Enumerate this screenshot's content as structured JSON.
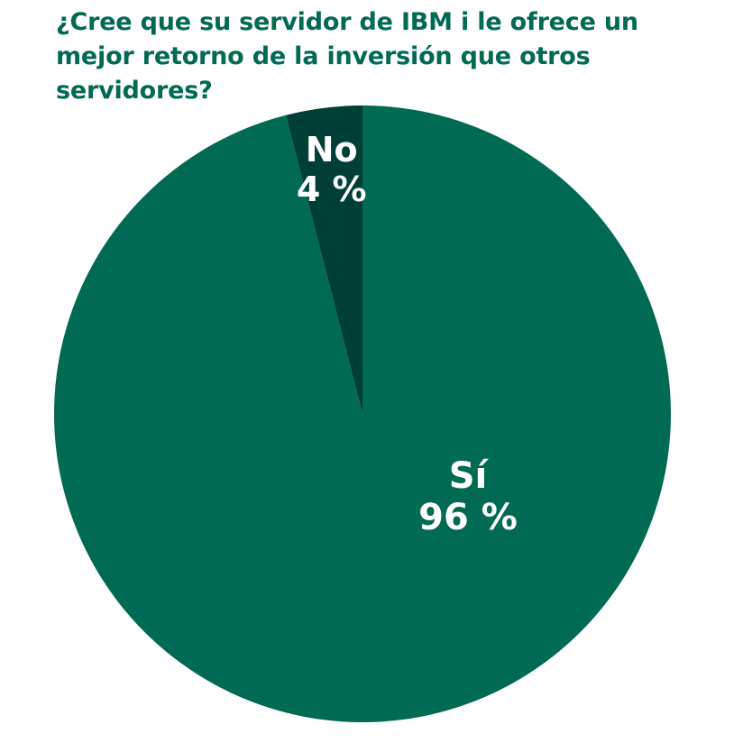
{
  "chart_data": {
    "type": "pie",
    "title": "¿Cree que su servidor de IBM i le ofrece un mejor retorno de la inversión que otros servidores?",
    "slices": [
      {
        "label": "Sí",
        "value": 96,
        "value_label": "96 %",
        "color": "#006a53"
      },
      {
        "label": "No",
        "value": 4,
        "value_label": "4 %",
        "color": "#003f35"
      }
    ],
    "legend": "none"
  }
}
